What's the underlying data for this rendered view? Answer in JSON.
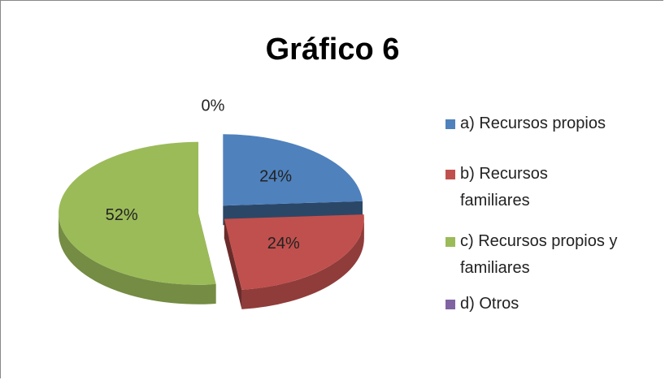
{
  "chart_data": {
    "type": "pie",
    "title": "Gráfico 6",
    "categories": [
      "a) Recursos propios",
      "b) Recursos familiares",
      "c) Recursos propios y familiares",
      "d) Otros"
    ],
    "values": [
      24,
      24,
      52,
      0
    ],
    "value_labels": [
      "24%",
      "24%",
      "52%",
      "0%"
    ],
    "colors": [
      "#4f81bd",
      "#c0504d",
      "#9bbb59",
      "#8064a2"
    ]
  }
}
